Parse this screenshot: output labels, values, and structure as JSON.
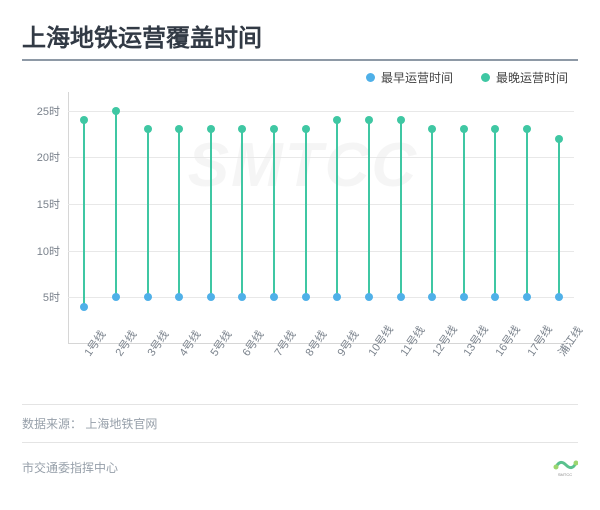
{
  "title": "上海地铁运营覆盖时间",
  "watermark": "SMTCC",
  "legend": {
    "early": {
      "label": "最早运营时间",
      "color": "#4fb0e8"
    },
    "late": {
      "label": "最晚运营时间",
      "color": "#3fc7a3"
    }
  },
  "chart": {
    "type": "range-dot",
    "ymin": 0,
    "ymax": 27,
    "yticks": [
      0,
      5,
      10,
      15,
      20,
      25
    ],
    "ytick_labels": [
      "",
      "5时",
      "10时",
      "15时",
      "20时",
      "25时"
    ],
    "grid_color": "#e8e8e8",
    "axis_color": "#d6d6d6",
    "early_color": "#4fb0e8",
    "late_color": "#3fc7a3",
    "stem_color": "#3fc7a3",
    "stem_width": 2,
    "dot_size": 8,
    "label_fontsize": 11,
    "label_color": "#7a828c",
    "categories": [
      "1号线",
      "2号线",
      "3号线",
      "4号线",
      "5号线",
      "6号线",
      "7号线",
      "8号线",
      "9号线",
      "10号线",
      "11号线",
      "12号线",
      "13号线",
      "16号线",
      "17号线",
      "浦江线"
    ],
    "early_values": [
      4,
      5,
      5,
      5,
      5,
      5,
      5,
      5,
      5,
      5,
      5,
      5,
      5,
      5,
      5,
      5
    ],
    "late_values": [
      24,
      25,
      23,
      23,
      23,
      23,
      23,
      23,
      24,
      24,
      24,
      23,
      23,
      23,
      23,
      22
    ]
  },
  "source_label": "数据来源：",
  "source_value": "上海地铁官网",
  "org": "市交通委指挥中心",
  "logo": {
    "color1": "#5ac18e",
    "color2": "#9dd66f",
    "text": "SMTCC"
  }
}
